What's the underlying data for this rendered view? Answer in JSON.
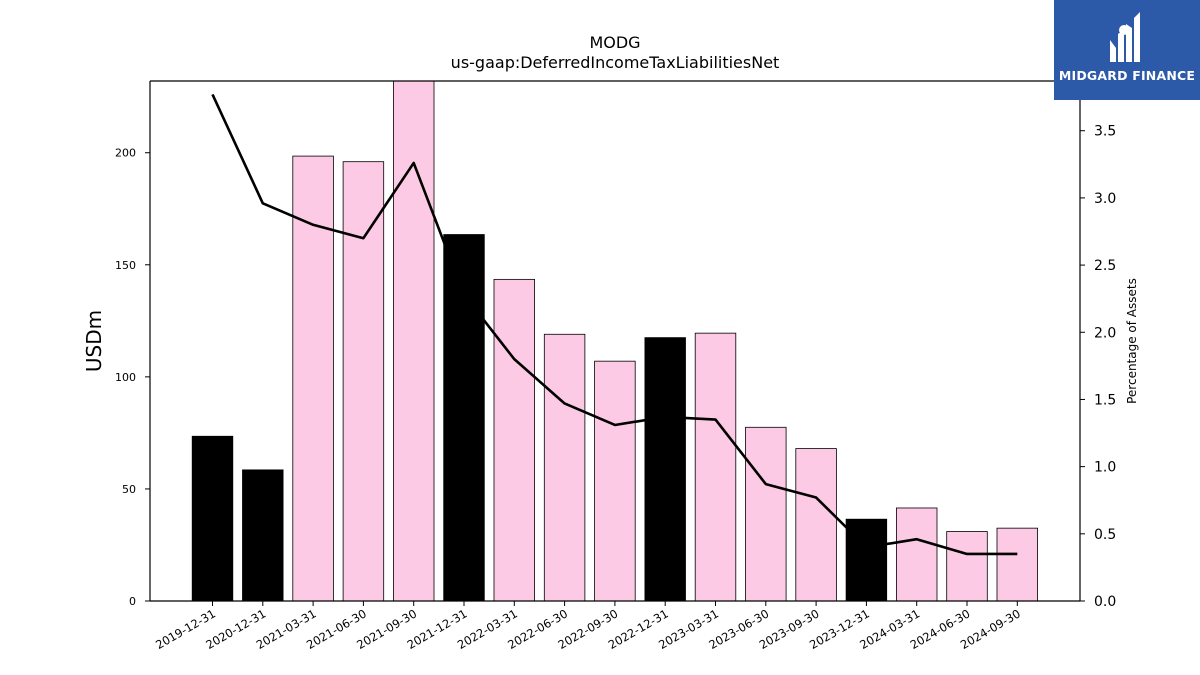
{
  "chart_data": {
    "type": "bar",
    "title": "MODG",
    "subtitle": "us-gaap:DeferredIncomeTaxLiabilitiesNet",
    "ylabel": "USDm",
    "y2label": "Percentage of Assets",
    "categories": [
      "2019-12-31",
      "2020-12-31",
      "2021-03-31",
      "2021-06-30",
      "2021-09-30",
      "2021-12-31",
      "2022-03-31",
      "2022-06-30",
      "2022-09-30",
      "2022-12-31",
      "2023-03-31",
      "2023-06-30",
      "2023-09-30",
      "2023-12-31",
      "2024-03-31",
      "2024-06-30",
      "2024-09-30"
    ],
    "series": [
      {
        "type": "bar",
        "axis": "left",
        "values": [
          73.5,
          58.5,
          198.5,
          196,
          235,
          163.5,
          143.5,
          119,
          107,
          117.5,
          119.5,
          77.5,
          68,
          36.5,
          41.5,
          31,
          32.5
        ],
        "colors": [
          "#000000",
          "#000000",
          "#fccae4",
          "#fccae4",
          "#fccae4",
          "#000000",
          "#fccae4",
          "#fccae4",
          "#fccae4",
          "#000000",
          "#fccae4",
          "#fccae4",
          "#fccae4",
          "#000000",
          "#fccae4",
          "#fccae4",
          "#fccae4"
        ]
      },
      {
        "type": "line",
        "axis": "right",
        "color": "#000000",
        "values": [
          3.77,
          2.96,
          2.8,
          2.7,
          3.26,
          2.28,
          1.8,
          1.47,
          1.31,
          1.37,
          1.35,
          0.87,
          0.77,
          0.4,
          0.46,
          0.35,
          0.35
        ]
      }
    ],
    "ylim": [
      0,
      232
    ],
    "yticks": [
      0,
      50,
      100,
      150,
      200
    ],
    "y2lim": [
      0,
      3.87
    ],
    "y2ticks": [
      "0.0",
      "0.5",
      "1.0",
      "1.5",
      "2.0",
      "2.5",
      "3.0",
      "3.5"
    ],
    "grid": false,
    "legend": "none"
  },
  "logo": {
    "text": "MIDGARD FINANCE",
    "bg": "#2c5aa8"
  }
}
